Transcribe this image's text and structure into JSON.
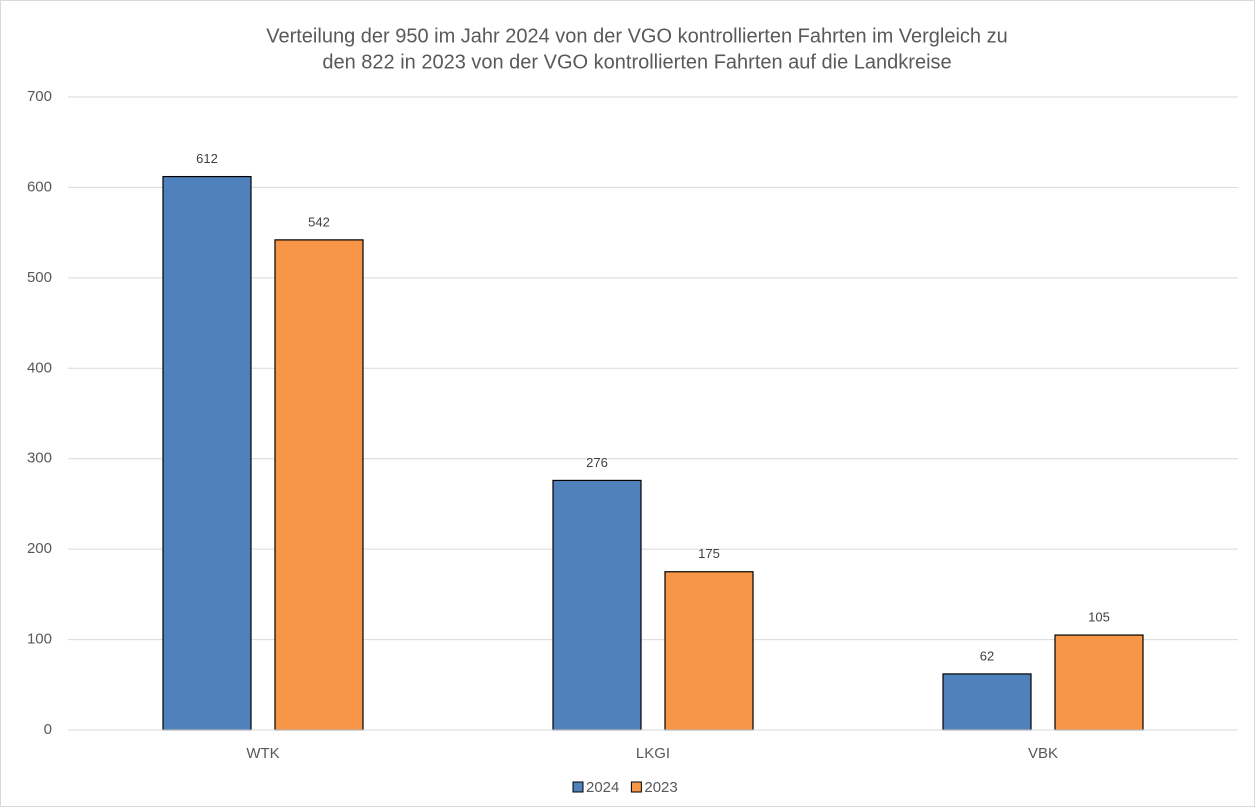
{
  "chart_data": {
    "type": "bar",
    "title": [
      "Verteilung der 950 im Jahr 2024 von der VGO kontrollierten Fahrten im Vergleich zu",
      "den 822 in 2023 von der VGO kontrollierten Fahrten auf die Landkreise"
    ],
    "categories": [
      "WTK",
      "LKGI",
      "VBK"
    ],
    "series": [
      {
        "name": "2024",
        "color": "#4f81bd",
        "values": [
          612,
          276,
          62
        ]
      },
      {
        "name": "2023",
        "color": "#f79646",
        "values": [
          542,
          175,
          105
        ]
      }
    ],
    "ylim": [
      0,
      700
    ],
    "yticks": [
      0,
      100,
      200,
      300,
      400,
      500,
      600,
      700
    ],
    "grid": true,
    "legend": "bottom"
  }
}
